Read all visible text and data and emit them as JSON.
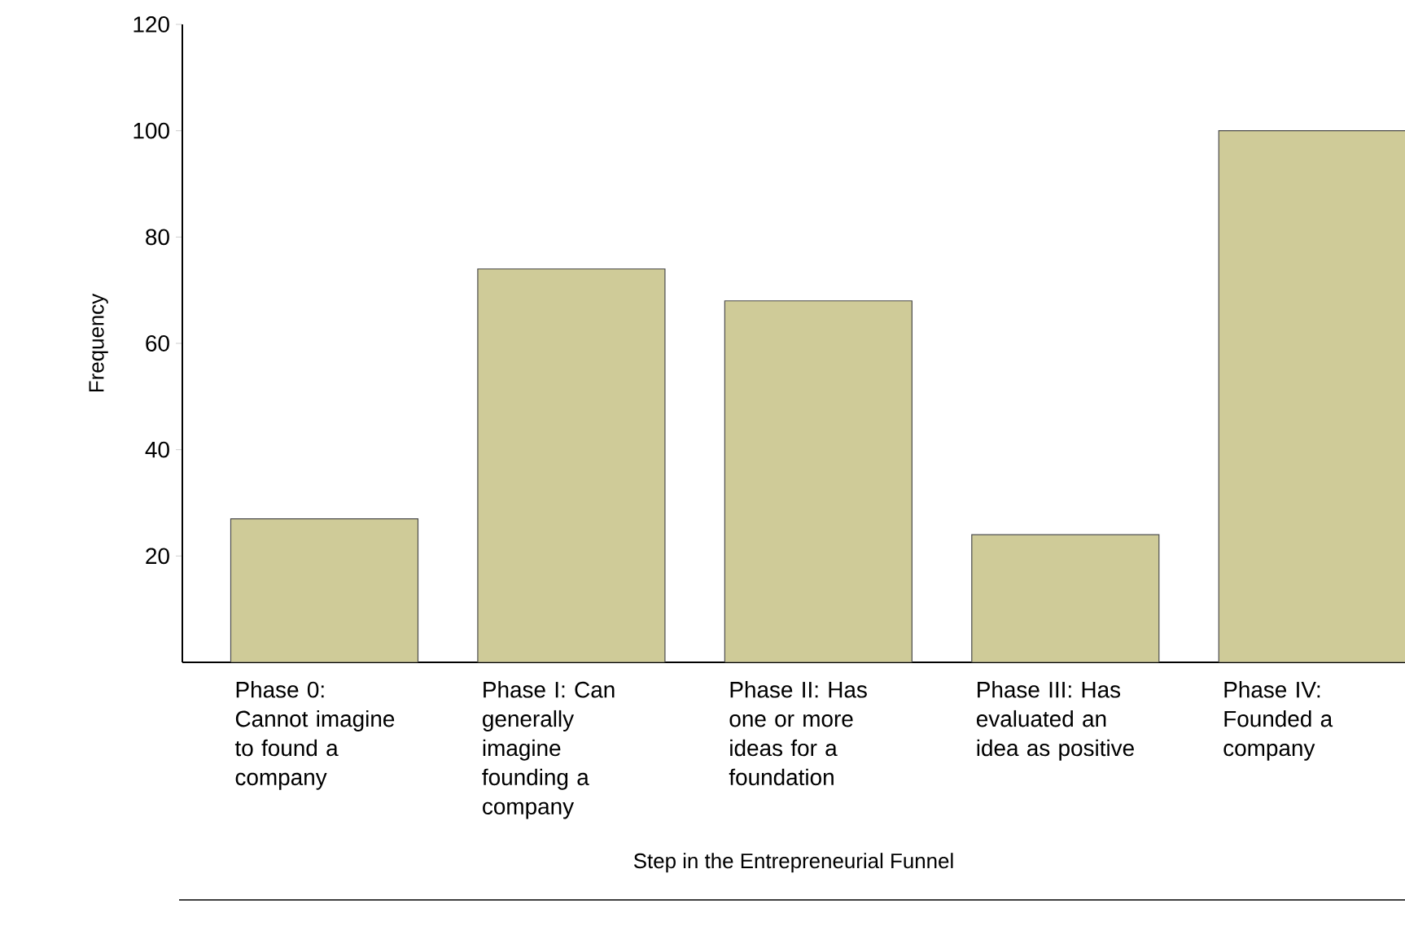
{
  "chart_data": {
    "type": "bar",
    "xlabel": "Step in the Entrepreneurial Funnel",
    "ylabel": "Frequency",
    "categories": [
      "Phase 0: Cannot imagine to found a company",
      "Phase I: Can generally imagine founding a company",
      "Phase II: Has one or more ideas for a foundation",
      "Phase III: Has evaluated an idea as positive",
      "Phase IV: Founded a company"
    ],
    "values": [
      27,
      74,
      68,
      24,
      100
    ],
    "color": "#cfcb98",
    "ylim": [
      0,
      120
    ],
    "yticks": [
      20,
      40,
      60,
      80,
      100,
      120
    ]
  }
}
